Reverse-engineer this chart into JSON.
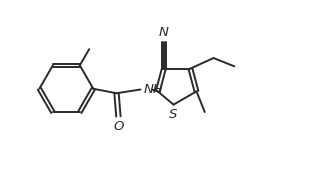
{
  "bg_color": "#ffffff",
  "line_color": "#2a2a2a",
  "line_width": 1.4,
  "font_size": 9.5,
  "figsize": [
    3.2,
    1.85
  ],
  "dpi": 100,
  "xlim": [
    0,
    8.5
  ],
  "ylim": [
    0,
    4.9
  ]
}
